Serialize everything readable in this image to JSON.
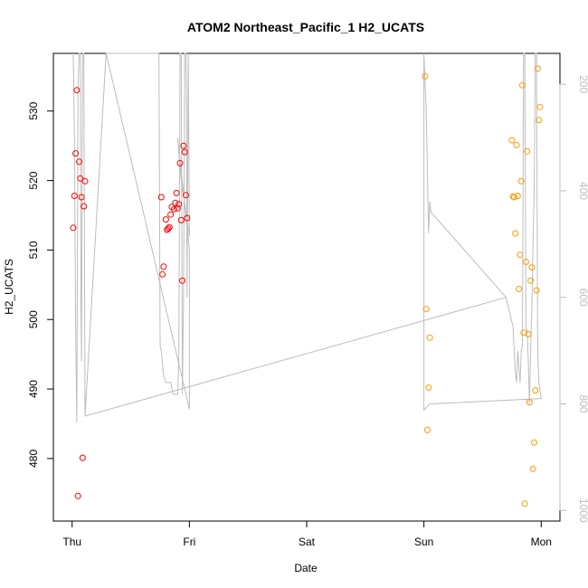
{
  "chart_data": {
    "type": "scatter",
    "title": "ATOM2 Northeast_Pacific_1 H2_UCATS",
    "xlabel": "Date",
    "ylabel": "H2_UCATS",
    "x_tick_labels": [
      "Thu",
      "Fri",
      "Sat",
      "Sun",
      "Mon"
    ],
    "x_tick_positions": [
      0,
      1,
      2,
      3,
      4
    ],
    "xlim": [
      -0.16,
      4.16
    ],
    "ylim": [
      471.0,
      538.3
    ],
    "y_ticks": [
      480,
      490,
      500,
      510,
      520,
      530
    ],
    "right_axis": {
      "ticks": [
        200,
        400,
        600,
        800,
        1000
      ],
      "lim": [
        1020,
        142
      ],
      "color": "#bdbdbd"
    },
    "colors": {
      "red": "#ff0000",
      "orange": "#ff9900",
      "profile": "#bdbdbd"
    },
    "series": [
      {
        "color": "#ff0000",
        "points": [
          [
            0.01,
            513.2
          ],
          [
            0.02,
            517.8
          ],
          [
            0.03,
            523.9
          ],
          [
            0.04,
            533.0
          ],
          [
            0.05,
            474.6
          ],
          [
            0.06,
            522.7
          ],
          [
            0.07,
            520.3
          ],
          [
            0.08,
            517.6
          ],
          [
            0.09,
            480.1
          ],
          [
            0.1,
            516.3
          ],
          [
            0.11,
            519.9
          ],
          [
            0.76,
            517.6
          ],
          [
            0.77,
            506.5
          ],
          [
            0.78,
            507.6
          ],
          [
            0.8,
            514.4
          ],
          [
            0.81,
            512.9
          ],
          [
            0.82,
            513.1
          ],
          [
            0.83,
            513.3
          ],
          [
            0.84,
            515.1
          ],
          [
            0.85,
            516.2
          ],
          [
            0.87,
            515.9
          ],
          [
            0.88,
            516.8
          ],
          [
            0.89,
            518.2
          ],
          [
            0.9,
            516.0
          ],
          [
            0.91,
            516.6
          ],
          [
            0.92,
            522.5
          ],
          [
            0.93,
            514.3
          ],
          [
            0.94,
            505.6
          ],
          [
            0.95,
            525.0
          ],
          [
            0.96,
            524.1
          ],
          [
            0.97,
            517.9
          ],
          [
            0.98,
            514.6
          ]
        ]
      },
      {
        "color": "#ff9900",
        "points": [
          [
            3.01,
            535.0
          ],
          [
            3.02,
            501.5
          ],
          [
            3.03,
            484.1
          ],
          [
            3.04,
            490.2
          ],
          [
            3.05,
            497.4
          ],
          [
            3.75,
            525.8
          ],
          [
            3.76,
            517.7
          ],
          [
            3.77,
            517.6
          ],
          [
            3.78,
            512.4
          ],
          [
            3.79,
            525.1
          ],
          [
            3.8,
            517.8
          ],
          [
            3.81,
            504.4
          ],
          [
            3.82,
            509.3
          ],
          [
            3.83,
            519.9
          ],
          [
            3.84,
            533.7
          ],
          [
            3.85,
            498.1
          ],
          [
            3.86,
            473.5
          ],
          [
            3.87,
            508.3
          ],
          [
            3.88,
            524.2
          ],
          [
            3.89,
            497.9
          ],
          [
            3.9,
            488.1
          ],
          [
            3.91,
            505.6
          ],
          [
            3.92,
            507.5
          ],
          [
            3.93,
            478.5
          ],
          [
            3.94,
            482.3
          ],
          [
            3.95,
            489.8
          ],
          [
            3.96,
            504.2
          ],
          [
            3.97,
            536.1
          ],
          [
            3.98,
            528.7
          ],
          [
            3.99,
            530.6
          ]
        ]
      }
    ],
    "profile_line": {
      "axis": "right",
      "points": [
        [
          0.01,
          142
        ],
        [
          0.02,
          300
        ],
        [
          0.03,
          650
        ],
        [
          0.04,
          835
        ],
        [
          0.045,
          520
        ],
        [
          0.05,
          210
        ],
        [
          0.06,
          142
        ],
        [
          0.07,
          142
        ],
        [
          0.075,
          620
        ],
        [
          0.08,
          720
        ],
        [
          0.085,
          350
        ],
        [
          0.09,
          142
        ],
        [
          0.095,
          142
        ],
        [
          0.1,
          142
        ],
        [
          0.11,
          823
        ],
        [
          0.29,
          142
        ],
        [
          0.74,
          142
        ],
        [
          0.75,
          690
        ],
        [
          0.76,
          700
        ],
        [
          0.78,
          748
        ],
        [
          0.8,
          760
        ],
        [
          0.82,
          760
        ],
        [
          0.84,
          760
        ],
        [
          0.86,
          782
        ],
        [
          0.88,
          782
        ],
        [
          0.9,
          782
        ],
        [
          0.91,
          715
        ],
        [
          0.92,
          142
        ],
        [
          0.93,
          142
        ],
        [
          0.94,
          782
        ],
        [
          0.95,
          600
        ],
        [
          0.96,
          142
        ],
        [
          0.97,
          142
        ],
        [
          0.975,
          220
        ],
        [
          0.98,
          600
        ],
        [
          0.99,
          142
        ],
        [
          1.0,
          485
        ],
        [
          0.93,
          380
        ],
        [
          0.9,
          300
        ],
        [
          1.0,
          510
        ],
        [
          1.0,
          810
        ],
        [
          0.29,
          142
        ],
        [
          0.11,
          823
        ],
        [
          3.7,
          600
        ],
        [
          3.76,
          655
        ],
        [
          3.77,
          700
        ],
        [
          3.78,
          742
        ],
        [
          3.79,
          760
        ],
        [
          3.8,
          700
        ],
        [
          3.81,
          730
        ],
        [
          3.82,
          760
        ],
        [
          3.83,
          700
        ],
        [
          3.84,
          690
        ],
        [
          3.85,
          142
        ],
        [
          3.86,
          142
        ],
        [
          3.87,
          660
        ],
        [
          3.88,
          660
        ],
        [
          3.89,
          720
        ],
        [
          3.9,
          800
        ],
        [
          3.91,
          700
        ],
        [
          3.92,
          620
        ],
        [
          3.93,
          500
        ],
        [
          3.94,
          400
        ],
        [
          3.95,
          142
        ],
        [
          3.96,
          142
        ],
        [
          3.97,
          700
        ],
        [
          3.98,
          760
        ],
        [
          3.99,
          775
        ],
        [
          4.0,
          790
        ],
        [
          3.05,
          800
        ],
        [
          3.04,
          802
        ],
        [
          3.0,
          812
        ],
        [
          3.0,
          650
        ],
        [
          3.0,
          142
        ],
        [
          3.02,
          250
        ],
        [
          3.04,
          480
        ],
        [
          3.05,
          420
        ],
        [
          3.06,
          440
        ],
        [
          3.7,
          600
        ]
      ]
    }
  }
}
